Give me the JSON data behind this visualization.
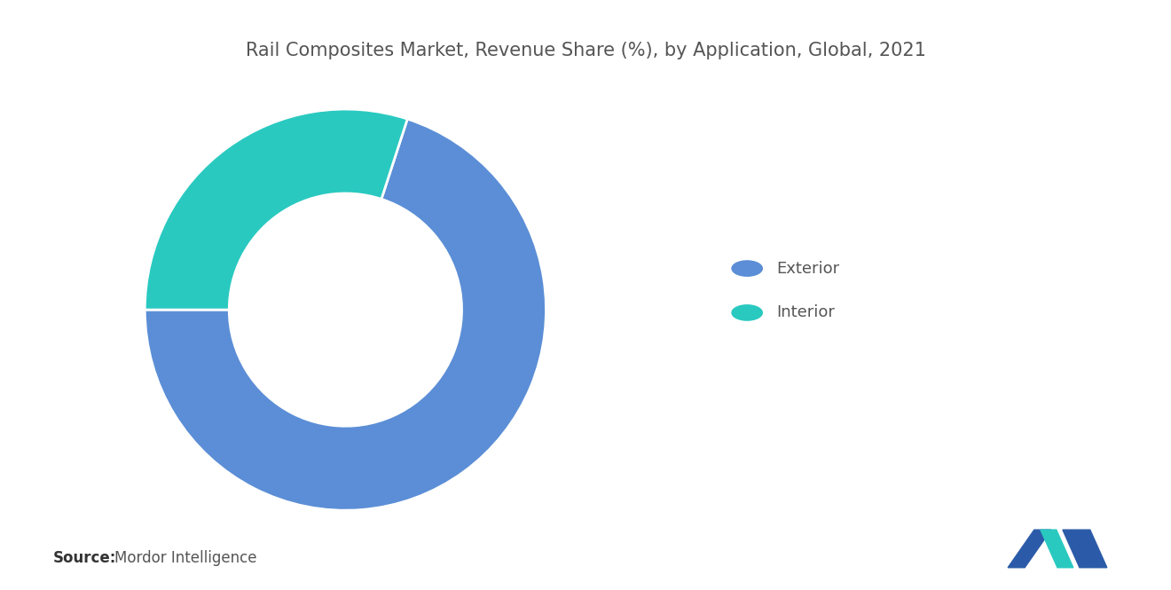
{
  "title": "Rail Composites Market, Revenue Share (%), by Application, Global, 2021",
  "segments": [
    "Exterior",
    "Interior"
  ],
  "values": [
    70,
    30
  ],
  "colors": [
    "#5B8ED6",
    "#29C9C0"
  ],
  "source_label": "Source:",
  "source_text": "Mordor Intelligence",
  "background_color": "#ffffff",
  "title_color": "#555555",
  "title_fontsize": 15,
  "legend_fontsize": 13,
  "source_fontsize": 12,
  "donut_width": 0.42,
  "startangle": 72
}
